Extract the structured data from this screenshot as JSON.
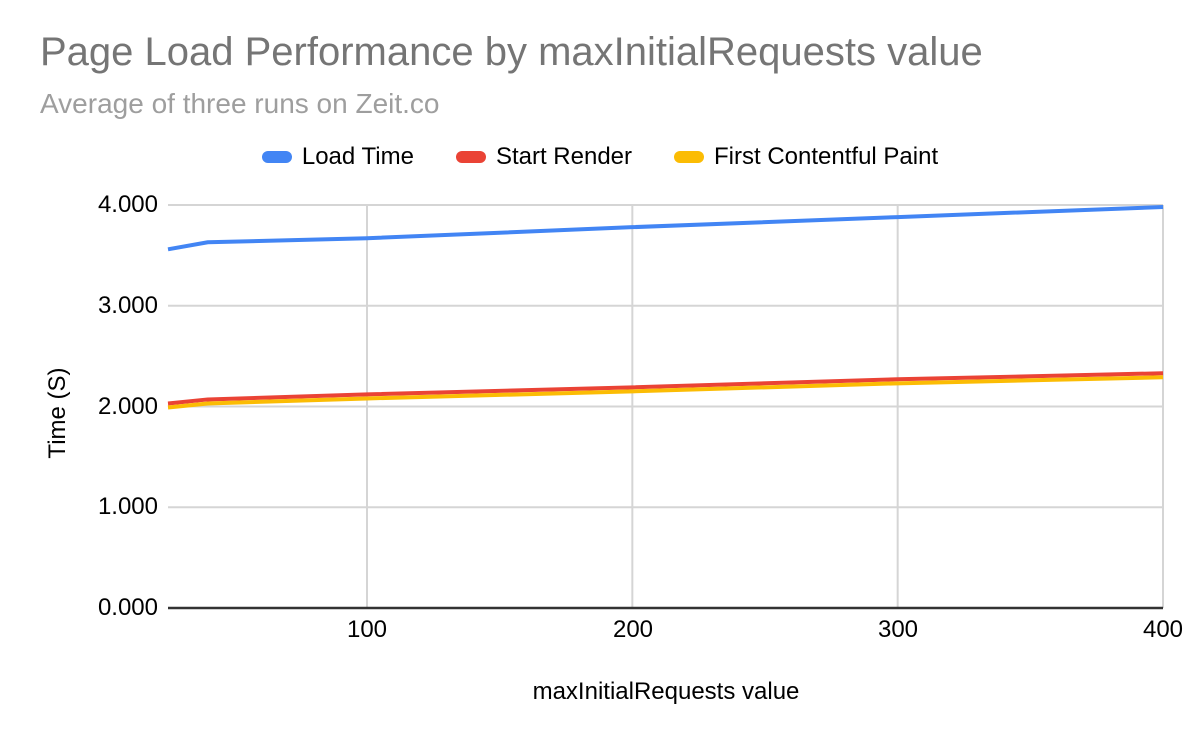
{
  "header": {
    "title": "Page Load Performance by maxInitialRequests value",
    "subtitle": "Average of three runs on Zeit.co"
  },
  "legend": {
    "items": [
      {
        "label": "Load Time",
        "color": "#4285F4"
      },
      {
        "label": "Start Render",
        "color": "#EA4335"
      },
      {
        "label": "First Contentful Paint",
        "color": "#FBBC04"
      }
    ]
  },
  "axes": {
    "y_title": "Time (S)",
    "x_title": "maxInitialRequests value"
  },
  "chart_data": {
    "type": "line",
    "title": "Page Load Performance by maxInitialRequests value",
    "subtitle": "Average of three runs on Zeit.co",
    "xlabel": "maxInitialRequests value",
    "ylabel": "Time (S)",
    "x": [
      25,
      40,
      100,
      200,
      300,
      400
    ],
    "series": [
      {
        "name": "Load Time",
        "color": "#4285F4",
        "values": [
          3.56,
          3.63,
          3.67,
          3.78,
          3.88,
          3.98
        ]
      },
      {
        "name": "Start Render",
        "color": "#EA4335",
        "values": [
          2.03,
          2.07,
          2.12,
          2.19,
          2.27,
          2.33
        ]
      },
      {
        "name": "First Contentful Paint",
        "color": "#FBBC04",
        "values": [
          1.99,
          2.03,
          2.08,
          2.15,
          2.23,
          2.29
        ]
      }
    ],
    "xlim": [
      25,
      400
    ],
    "ylim": [
      0,
      4
    ],
    "x_ticks": [
      {
        "value": 100,
        "label": "100"
      },
      {
        "value": 200,
        "label": "200"
      },
      {
        "value": 300,
        "label": "300"
      },
      {
        "value": 400,
        "label": "400"
      }
    ],
    "y_ticks": [
      {
        "value": 4,
        "label": "4.000"
      },
      {
        "value": 3,
        "label": "3.000"
      },
      {
        "value": 2,
        "label": "2.000"
      },
      {
        "value": 1,
        "label": "1.000"
      },
      {
        "value": 0,
        "label": "0.000"
      }
    ],
    "grid": true,
    "legend_position": "top",
    "colors": {
      "gridline": "#D5D5D5",
      "axis_line": "#333333",
      "title_text": "#757575",
      "subtitle_text": "#9E9E9E",
      "tick_text": "#000000"
    }
  }
}
